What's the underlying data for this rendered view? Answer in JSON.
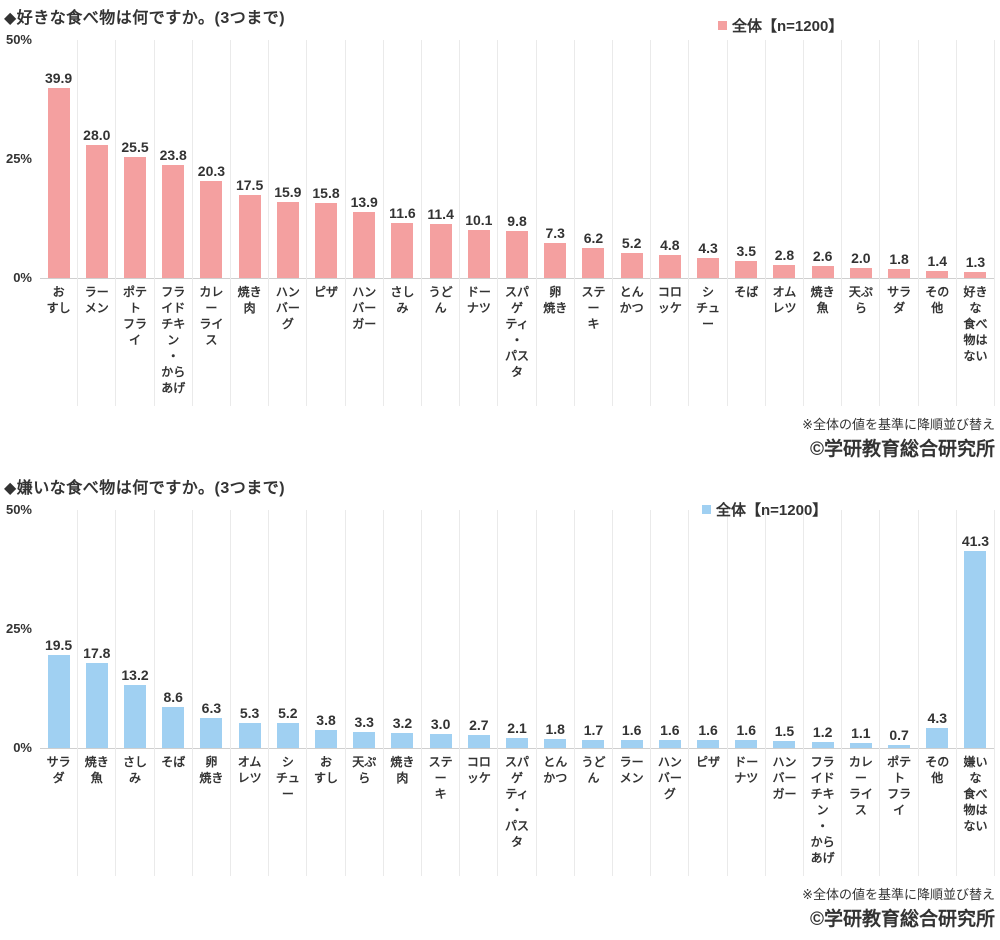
{
  "chart_data": [
    {
      "type": "bar",
      "title": "◆好きな食べ物は何ですか。(3つまで)",
      "legend_label": "全体【n=1200】",
      "bar_color": "#F4A0A0",
      "y_ticks": [
        "50%",
        "25%",
        "0%"
      ],
      "ylim": [
        0,
        50
      ],
      "ylabel": "%",
      "xlabel": "",
      "grid": "vertical-separators-only",
      "legend_position": "top-right-inside",
      "sort_note": "※全体の値を基準に降順並び替え",
      "credit": "©学研教育総合研究所",
      "categories": [
        "おすし",
        "ラーメン",
        "ポテトフライ",
        "フライドチキン・からあげ",
        "カレーライス",
        "焼き肉",
        "ハンバーグ",
        "ピザ",
        "ハンバーガー",
        "さしみ",
        "うどん",
        "ドーナツ",
        "スパゲティ・パスタ",
        "卵焼き",
        "ステーキ",
        "とんかつ",
        "コロッケ",
        "シチュー",
        "そば",
        "オムレツ",
        "焼き魚",
        "天ぷら",
        "サラダ",
        "その他",
        "好きな食べ物はない"
      ],
      "category_lines": [
        "お\nすし",
        "ラー\nメン",
        "ポテ\nト\nフラ\nイ",
        "フラ\nイド\nチキ\nン\n・\nから\nあげ",
        "カレ\nー\nライ\nス",
        "焼き\n肉",
        "ハン\nバー\nグ",
        "ピザ",
        "ハン\nバー\nガー",
        "さし\nみ",
        "うど\nん",
        "ドー\nナツ",
        "スパ\nゲ\nティ\n・\nパス\nタ",
        "卵\n焼き",
        "ステ\nー\nキ",
        "とん\nかつ",
        "コロ\nッケ",
        "シ\nチュ\nー",
        "そば",
        "オム\nレツ",
        "焼き\n魚",
        "天ぷ\nら",
        "サラ\nダ",
        "その\n他",
        "好き\nな\n食べ\n物は\nない"
      ],
      "values": [
        39.9,
        28.0,
        25.5,
        23.8,
        20.3,
        17.5,
        15.9,
        15.8,
        13.9,
        11.6,
        11.4,
        10.1,
        9.8,
        7.3,
        6.2,
        5.2,
        4.8,
        4.3,
        3.5,
        2.8,
        2.6,
        2.0,
        1.8,
        1.4,
        1.3
      ]
    },
    {
      "type": "bar",
      "title": "◆嫌いな食べ物は何ですか。(3つまで)",
      "legend_label": "全体【n=1200】",
      "bar_color": "#A0D0F2",
      "y_ticks": [
        "50%",
        "25%",
        "0%"
      ],
      "ylim": [
        0,
        50
      ],
      "ylabel": "%",
      "xlabel": "",
      "grid": "vertical-separators-only",
      "legend_position": "top-right-inside",
      "sort_note": "※全体の値を基準に降順並び替え",
      "credit": "©学研教育総合研究所",
      "categories": [
        "サラダ",
        "焼き魚",
        "さしみ",
        "そば",
        "卵焼き",
        "オムレツ",
        "シチュー",
        "おすし",
        "天ぷら",
        "焼き肉",
        "ステーキ",
        "コロッケ",
        "スパゲティ・パスタ",
        "とんかつ",
        "うどん",
        "ラーメン",
        "ハンバーグ",
        "ピザ",
        "ドーナツ",
        "ハンバーガー",
        "フライドチキン・からあげ",
        "カレーライス",
        "ポテトフライ",
        "その他",
        "嫌いな食べ物はない"
      ],
      "category_lines": [
        "サラ\nダ",
        "焼き\n魚",
        "さし\nみ",
        "そば",
        "卵\n焼き",
        "オム\nレツ",
        "シ\nチュ\nー",
        "お\nすし",
        "天ぷ\nら",
        "焼き\n肉",
        "ステ\nー\nキ",
        "コロ\nッケ",
        "スパ\nゲ\nティ\n・\nパス\nタ",
        "とん\nかつ",
        "うど\nん",
        "ラー\nメン",
        "ハン\nバー\nグ",
        "ピザ",
        "ドー\nナツ",
        "ハン\nバー\nガー",
        "フラ\nイド\nチキ\nン\n・\nから\nあげ",
        "カレ\nー\nライ\nス",
        "ポテ\nト\nフラ\nイ",
        "その\n他",
        "嫌い\nな\n食べ\n物は\nない"
      ],
      "values": [
        19.5,
        17.8,
        13.2,
        8.6,
        6.3,
        5.3,
        5.2,
        3.8,
        3.3,
        3.2,
        3.0,
        2.7,
        2.1,
        1.8,
        1.7,
        1.6,
        1.6,
        1.6,
        1.6,
        1.5,
        1.2,
        1.1,
        0.7,
        4.3,
        41.3
      ]
    }
  ]
}
